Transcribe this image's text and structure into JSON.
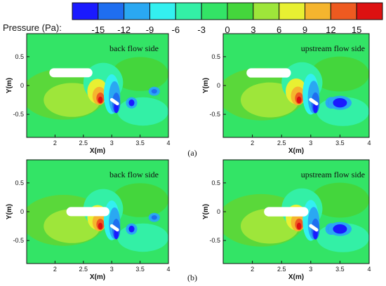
{
  "colorbar": {
    "label": "Pressure (Pa):",
    "tick_labels": [
      "-15",
      "-12",
      "-9",
      "-6",
      "-3",
      "0",
      "3",
      "6",
      "9",
      "12",
      "15"
    ],
    "colors": [
      "#1a1aff",
      "#1f6ef0",
      "#2aa8f2",
      "#33f0f0",
      "#33f0a6",
      "#33e466",
      "#44d63c",
      "#9ee63a",
      "#e8f032",
      "#f5b52e",
      "#ee5a20",
      "#dd1111"
    ]
  },
  "axes": {
    "x_label": "X(m)",
    "y_label": "Y(m)",
    "x_ticks": [
      "2",
      "2.5",
      "3",
      "3.5",
      "4"
    ],
    "y_ticks": [
      "0.5",
      "0",
      "-0.5"
    ]
  },
  "panels": [
    {
      "label": "back flow side",
      "row": "a"
    },
    {
      "label": "upstream flow side",
      "row": "a"
    },
    {
      "label": "back flow side",
      "row": "b"
    },
    {
      "label": "upstream flow side",
      "row": "b"
    }
  ],
  "subfigures": [
    "(a)",
    "(b)"
  ]
}
